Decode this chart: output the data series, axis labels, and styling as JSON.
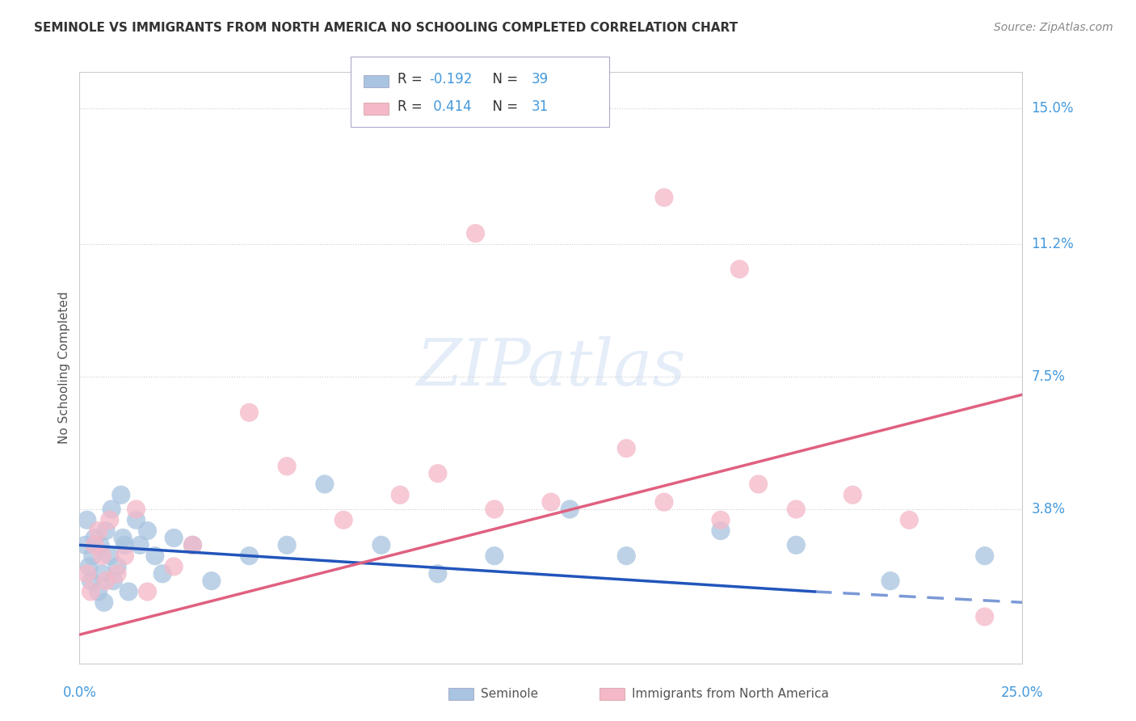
{
  "title": "SEMINOLE VS IMMIGRANTS FROM NORTH AMERICA NO SCHOOLING COMPLETED CORRELATION CHART",
  "source": "Source: ZipAtlas.com",
  "ylabel": "No Schooling Completed",
  "ytick_labels": [
    "15.0%",
    "11.2%",
    "7.5%",
    "3.8%"
  ],
  "ytick_values": [
    15.0,
    11.2,
    7.5,
    3.8
  ],
  "xlim": [
    0.0,
    25.0
  ],
  "ylim": [
    -0.5,
    16.0
  ],
  "seminole_color": "#a8c4e0",
  "immigrants_color": "#f4b8c8",
  "trend_blue": "#2255bb",
  "trend_pink": "#e06080",
  "axis_label_color": "#4499dd",
  "background_color": "#ffffff",
  "grid_color": "#cccccc",
  "title_color": "#333333",
  "source_color": "#888888",
  "seminole_x": [
    0.15,
    0.2,
    0.25,
    0.3,
    0.35,
    0.4,
    0.5,
    0.55,
    0.6,
    0.65,
    0.7,
    0.8,
    0.85,
    0.9,
    1.0,
    1.1,
    1.15,
    1.2,
    1.3,
    1.5,
    1.6,
    1.8,
    2.0,
    2.2,
    2.5,
    3.0,
    3.5,
    4.5,
    5.5,
    6.5,
    8.0,
    9.5,
    11.0,
    13.0,
    14.5,
    17.0,
    19.0,
    21.5,
    24.0
  ],
  "seminole_y": [
    2.8,
    3.5,
    2.2,
    1.8,
    2.5,
    3.0,
    1.5,
    2.8,
    2.0,
    1.2,
    3.2,
    2.5,
    3.8,
    1.8,
    2.2,
    4.2,
    3.0,
    2.8,
    1.5,
    3.5,
    2.8,
    3.2,
    2.5,
    2.0,
    3.0,
    2.8,
    1.8,
    2.5,
    2.8,
    4.5,
    2.8,
    2.0,
    2.5,
    3.8,
    2.5,
    3.2,
    2.8,
    1.8,
    2.5
  ],
  "immigrants_x": [
    0.2,
    0.3,
    0.4,
    0.5,
    0.6,
    0.7,
    0.8,
    1.0,
    1.2,
    1.5,
    1.8,
    2.5,
    3.0,
    4.5,
    5.5,
    7.0,
    8.5,
    9.5,
    11.0,
    12.5,
    14.5,
    15.5,
    17.0,
    18.0,
    19.0,
    20.5,
    22.0,
    24.0,
    15.5,
    17.5,
    10.5
  ],
  "immigrants_y": [
    2.0,
    1.5,
    2.8,
    3.2,
    2.5,
    1.8,
    3.5,
    2.0,
    2.5,
    3.8,
    1.5,
    2.2,
    2.8,
    6.5,
    5.0,
    3.5,
    4.2,
    4.8,
    3.8,
    4.0,
    5.5,
    4.0,
    3.5,
    4.5,
    3.8,
    4.2,
    3.5,
    0.8,
    12.5,
    10.5,
    11.5
  ],
  "blue_trend_x0": 0.0,
  "blue_trend_y0": 2.8,
  "blue_trend_x1": 19.5,
  "blue_trend_y1": 1.5,
  "blue_dash_x0": 19.5,
  "blue_dash_y0": 1.5,
  "blue_dash_x1": 25.0,
  "blue_dash_y1": 1.2,
  "pink_trend_x0": 0.0,
  "pink_trend_y0": 0.3,
  "pink_trend_x1": 25.0,
  "pink_trend_y1": 7.0
}
